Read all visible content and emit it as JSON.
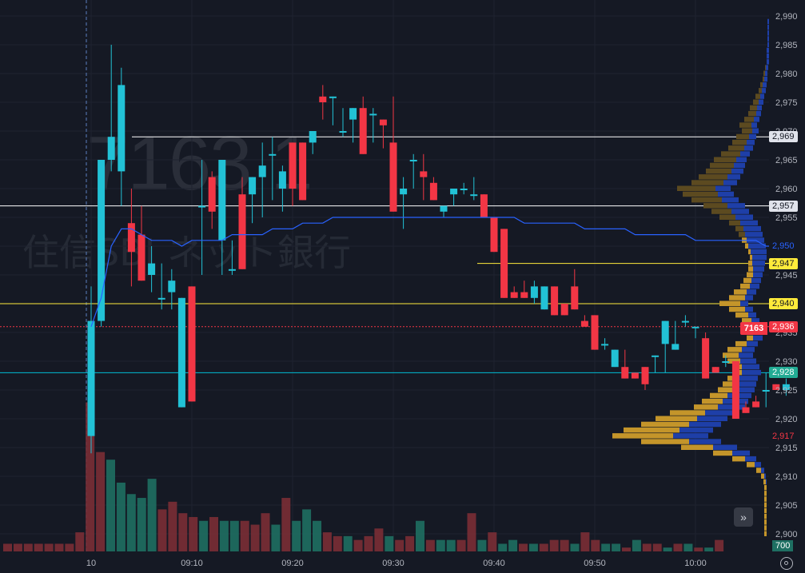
{
  "watermark": {
    "ticker": "7163  1",
    "name": "住信SBI ネット銀行"
  },
  "symbol_tag": "7163",
  "volume_tag": "700",
  "price_axis_ticks": [
    "2,990",
    "2,985",
    "2,980",
    "2,975",
    "2,970",
    "2,965",
    "2,960",
    "2,955",
    "2,950",
    "2,945",
    "2,940",
    "2,935",
    "2,930",
    "2,925",
    "2,920",
    "2,915",
    "2,910",
    "2,905",
    "2,900"
  ],
  "time_axis_ticks": [
    "10",
    "09:10",
    "09:20",
    "09:30",
    "09:40",
    "09:50",
    "10:00"
  ],
  "price_tags": [
    {
      "label": "2,969",
      "value": 2969,
      "bg": "#e0e3eb",
      "fg": "#131722",
      "line": "#ffffff"
    },
    {
      "label": "2,957",
      "value": 2957,
      "bg": "#e0e3eb",
      "fg": "#131722",
      "line": "#ffffff"
    },
    {
      "label": "2,950",
      "value": 2950,
      "bg": "#151924",
      "fg": "#2962ff",
      "line": ""
    },
    {
      "label": "2,947",
      "value": 2947,
      "bg": "#ffeb3b",
      "fg": "#131722",
      "line": "#ffeb3b"
    },
    {
      "label": "2,940",
      "value": 2940,
      "bg": "#ffeb3b",
      "fg": "#131722",
      "line": "#ffeb3b"
    },
    {
      "label": "2,936",
      "value": 2936,
      "bg": "#f23645",
      "fg": "#ffffff",
      "line": "#f23645"
    },
    {
      "label": "2,928",
      "value": 2928,
      "bg": "#22ab94",
      "fg": "#ffffff",
      "line": "#00bcd4"
    },
    {
      "label": "2,917",
      "value": 2917,
      "bg": "#151924",
      "fg": "#f23645",
      "line": ""
    }
  ],
  "colors": {
    "up": "#22c2d6",
    "down": "#f23645",
    "vol_up": "#1e6f62",
    "vol_down": "#7a2e35",
    "vwap": "#2962ff",
    "vp_upper": "#5c4a20",
    "vp_lower": "#c4952a",
    "vp_blue": "#1e3fa8"
  },
  "chart_data": {
    "type": "candlestick",
    "symbol": "7163",
    "ylim": [
      2898,
      2991
    ],
    "candles": [
      [
        2917,
        2943,
        2914,
        2937
      ],
      [
        2937,
        2965,
        2936,
        2965
      ],
      [
        2965,
        2985,
        2963,
        2969
      ],
      [
        2963,
        2981,
        2957,
        2978
      ],
      [
        2954,
        2960,
        2943,
        2949
      ],
      [
        2952,
        2957,
        2944,
        2944
      ],
      [
        2945,
        2950,
        2942,
        2947
      ],
      [
        2941,
        2947,
        2939,
        2941
      ],
      [
        2942,
        2946,
        2939,
        2944
      ],
      [
        2922,
        2941,
        2922,
        2941
      ],
      [
        2943,
        2943,
        2923,
        2923
      ],
      [
        2957,
        2965,
        2945,
        2957
      ],
      [
        2962,
        2963,
        2953,
        2956
      ],
      [
        2951,
        2965,
        2945,
        2965
      ],
      [
        2946,
        2951,
        2945,
        2946
      ],
      [
        2959,
        2962,
        2946,
        2946
      ],
      [
        2959,
        2962,
        2954,
        2962
      ],
      [
        2962,
        2968,
        2955,
        2964
      ],
      [
        2966,
        2969,
        2958,
        2966
      ],
      [
        2960,
        2964,
        2956,
        2963
      ],
      [
        2968,
        2968,
        2957,
        2960
      ],
      [
        2968,
        2968,
        2958,
        2958
      ],
      [
        2968,
        2970,
        2966,
        2970
      ],
      [
        2976,
        2978,
        2972,
        2975
      ],
      [
        2976,
        2976,
        2971,
        2976
      ],
      [
        2970,
        2974,
        2969,
        2970
      ],
      [
        2972,
        2974,
        2968,
        2974
      ],
      [
        2974,
        2976,
        2966,
        2966
      ],
      [
        2973,
        2974,
        2968,
        2973
      ],
      [
        2972,
        2972,
        2967,
        2971
      ],
      [
        2968,
        2976,
        2956,
        2956
      ],
      [
        2959,
        2962,
        2953,
        2960
      ],
      [
        2965,
        2966,
        2960,
        2965
      ],
      [
        2963,
        2966,
        2958,
        2962
      ],
      [
        2961,
        2962,
        2958,
        2958
      ],
      [
        2956,
        2957,
        2955,
        2957
      ],
      [
        2959,
        2960,
        2957,
        2960
      ],
      [
        2960,
        2961,
        2959,
        2960
      ],
      [
        2959,
        2962,
        2958,
        2959
      ],
      [
        2959,
        2959,
        2955,
        2955
      ],
      [
        2955,
        2955,
        2949,
        2949
      ],
      [
        2953,
        2953,
        2941,
        2941
      ],
      [
        2942,
        2943,
        2941,
        2941
      ],
      [
        2942,
        2944,
        2941,
        2941
      ],
      [
        2941,
        2944,
        2940,
        2943
      ],
      [
        2939,
        2943,
        2939,
        2943
      ],
      [
        2943,
        2943,
        2938,
        2938
      ],
      [
        2940,
        2940,
        2938,
        2938
      ],
      [
        2943,
        2946,
        2939,
        2939
      ],
      [
        2937,
        2938,
        2936,
        2936
      ],
      [
        2938,
        2938,
        2932,
        2932
      ],
      [
        2933,
        2934,
        2932,
        2933
      ],
      [
        2929,
        2932,
        2929,
        2932
      ],
      [
        2929,
        2932,
        2927,
        2927
      ],
      [
        2928,
        2928,
        2927,
        2927
      ],
      [
        2929,
        2929,
        2925,
        2926
      ],
      [
        2931,
        2931,
        2928,
        2931
      ],
      [
        2933,
        2937,
        2928,
        2937
      ],
      [
        2932,
        2937,
        2932,
        2933
      ],
      [
        2937,
        2938,
        2936,
        2937
      ],
      [
        2936,
        2936,
        2934,
        2936
      ],
      [
        2934,
        2935,
        2927,
        2927
      ],
      [
        2929,
        2929,
        2928,
        2928
      ],
      [
        2930,
        2931,
        2929,
        2930
      ],
      [
        2930,
        2930,
        2920,
        2920
      ],
      [
        2922,
        2923,
        2921,
        2921
      ],
      [
        2923,
        2924,
        2922,
        2922
      ],
      [
        2925,
        2928,
        2922,
        2925
      ],
      [
        2926,
        2926,
        2925,
        2925
      ],
      [
        2925,
        2927,
        2924,
        2926
      ]
    ],
    "volume": [
      [
        1,
        2
      ],
      [
        1,
        2
      ],
      [
        1,
        2
      ],
      [
        1,
        2
      ],
      [
        1,
        2
      ],
      [
        1,
        2
      ],
      [
        1,
        2
      ],
      [
        1,
        5
      ],
      [
        1,
        39
      ],
      [
        1,
        26
      ],
      [
        0,
        24
      ],
      [
        0,
        18
      ],
      [
        0,
        15
      ],
      [
        0,
        14
      ],
      [
        0,
        19
      ],
      [
        1,
        11
      ],
      [
        1,
        13
      ],
      [
        1,
        10
      ],
      [
        1,
        9
      ],
      [
        0,
        8
      ],
      [
        1,
        9
      ],
      [
        0,
        8
      ],
      [
        0,
        8
      ],
      [
        1,
        8
      ],
      [
        1,
        7
      ],
      [
        1,
        10
      ],
      [
        0,
        7
      ],
      [
        1,
        14
      ],
      [
        0,
        8
      ],
      [
        0,
        11
      ],
      [
        0,
        8
      ],
      [
        1,
        5
      ],
      [
        1,
        4
      ],
      [
        0,
        4
      ],
      [
        1,
        3
      ],
      [
        1,
        4
      ],
      [
        1,
        6
      ],
      [
        0,
        4
      ],
      [
        1,
        3
      ],
      [
        1,
        4
      ],
      [
        0,
        8
      ],
      [
        1,
        3
      ],
      [
        0,
        3
      ],
      [
        0,
        3
      ],
      [
        1,
        3
      ],
      [
        1,
        10
      ],
      [
        0,
        3
      ],
      [
        1,
        5
      ],
      [
        0,
        2
      ],
      [
        0,
        3
      ],
      [
        1,
        2
      ],
      [
        0,
        2
      ],
      [
        1,
        2
      ],
      [
        1,
        3
      ],
      [
        1,
        3
      ],
      [
        0,
        2
      ],
      [
        1,
        5
      ],
      [
        1,
        3
      ],
      [
        0,
        2
      ],
      [
        0,
        2
      ],
      [
        1,
        1
      ],
      [
        0,
        3
      ],
      [
        1,
        2
      ],
      [
        1,
        2
      ],
      [
        0,
        1
      ],
      [
        1,
        2
      ],
      [
        0,
        2
      ],
      [
        1,
        1
      ],
      [
        0,
        1
      ],
      [
        1,
        3
      ]
    ],
    "volume_ylim": [
      0,
      46
    ],
    "vwap": [
      2936,
      2941,
      2950,
      2953,
      2953,
      2952,
      2951,
      2951,
      2951,
      2950,
      2951,
      2951,
      2951,
      2951,
      2952,
      2952,
      2952,
      2952,
      2953,
      2953,
      2953,
      2954,
      2954,
      2954,
      2955,
      2955,
      2955,
      2955,
      2955,
      2955,
      2955,
      2955,
      2955,
      2955,
      2955,
      2955,
      2955,
      2955,
      2955,
      2955,
      2955,
      2955,
      2955,
      2954,
      2954,
      2954,
      2954,
      2954,
      2954,
      2953,
      2953,
      2953,
      2953,
      2953,
      2952,
      2952,
      2952,
      2952,
      2952,
      2952,
      2951,
      2951,
      2951,
      2951,
      2951,
      2951,
      2951,
      2950,
      2950,
      2950
    ],
    "volume_profile": [
      [
        2989,
        0,
        2
      ],
      [
        2988,
        0,
        2
      ],
      [
        2987,
        0,
        2
      ],
      [
        2986,
        0,
        2
      ],
      [
        2985,
        0,
        2
      ],
      [
        2984,
        0,
        3
      ],
      [
        2983,
        0,
        3
      ],
      [
        2982,
        0,
        3
      ],
      [
        2981,
        1,
        3
      ],
      [
        2980,
        2,
        3
      ],
      [
        2979,
        2,
        4
      ],
      [
        2978,
        3,
        5
      ],
      [
        2977,
        4,
        5
      ],
      [
        2976,
        6,
        5
      ],
      [
        2975,
        7,
        6
      ],
      [
        2974,
        9,
        6
      ],
      [
        2973,
        10,
        6
      ],
      [
        2972,
        12,
        7
      ],
      [
        2971,
        15,
        7
      ],
      [
        2970,
        13,
        8
      ],
      [
        2969,
        16,
        9
      ],
      [
        2968,
        18,
        10
      ],
      [
        2967,
        20,
        11
      ],
      [
        2966,
        24,
        12
      ],
      [
        2965,
        28,
        13
      ],
      [
        2964,
        30,
        14
      ],
      [
        2963,
        32,
        15
      ],
      [
        2962,
        36,
        16
      ],
      [
        2961,
        40,
        17
      ],
      [
        2960,
        48,
        19
      ],
      [
        2959,
        44,
        20
      ],
      [
        2958,
        38,
        21
      ],
      [
        2957,
        30,
        22
      ],
      [
        2956,
        25,
        22
      ],
      [
        2955,
        20,
        22
      ],
      [
        2954,
        14,
        22
      ],
      [
        2953,
        10,
        22
      ],
      [
        2952,
        8,
        22
      ],
      [
        2951,
        6,
        22
      ],
      [
        2950,
        4,
        22
      ],
      [
        2949,
        3,
        20
      ],
      [
        2948,
        3,
        18
      ],
      [
        2947,
        5,
        16
      ],
      [
        2946,
        6,
        14
      ],
      [
        2945,
        8,
        12
      ],
      [
        2944,
        10,
        12
      ],
      [
        2943,
        12,
        12
      ],
      [
        2942,
        16,
        12
      ],
      [
        2941,
        20,
        10
      ],
      [
        2940,
        26,
        10
      ],
      [
        2939,
        20,
        10
      ],
      [
        2938,
        16,
        10
      ],
      [
        2937,
        12,
        10
      ],
      [
        2936,
        8,
        10
      ],
      [
        2935,
        6,
        10
      ],
      [
        2934,
        8,
        12
      ],
      [
        2933,
        14,
        14
      ],
      [
        2932,
        18,
        16
      ],
      [
        2931,
        20,
        18
      ],
      [
        2930,
        16,
        20
      ],
      [
        2929,
        12,
        22
      ],
      [
        2928,
        10,
        24
      ],
      [
        2927,
        14,
        24
      ],
      [
        2926,
        16,
        26
      ],
      [
        2925,
        18,
        28
      ],
      [
        2924,
        22,
        30
      ],
      [
        2923,
        26,
        32
      ],
      [
        2922,
        30,
        34
      ],
      [
        2921,
        44,
        36
      ],
      [
        2920,
        52,
        38
      ],
      [
        2919,
        60,
        40
      ],
      [
        2918,
        70,
        42
      ],
      [
        2917,
        76,
        44
      ],
      [
        2916,
        60,
        40
      ],
      [
        2915,
        40,
        30
      ],
      [
        2914,
        24,
        22
      ],
      [
        2913,
        16,
        14
      ],
      [
        2912,
        10,
        8
      ],
      [
        2911,
        6,
        4
      ],
      [
        2910,
        4,
        2
      ],
      [
        2909,
        3,
        1
      ],
      [
        2908,
        3,
        0
      ],
      [
        2907,
        3,
        0
      ],
      [
        2906,
        3,
        0
      ],
      [
        2905,
        3,
        0
      ],
      [
        2904,
        3,
        0
      ],
      [
        2903,
        3,
        0
      ],
      [
        2902,
        3,
        0
      ],
      [
        2901,
        3,
        0
      ],
      [
        2900,
        3,
        0
      ]
    ]
  }
}
